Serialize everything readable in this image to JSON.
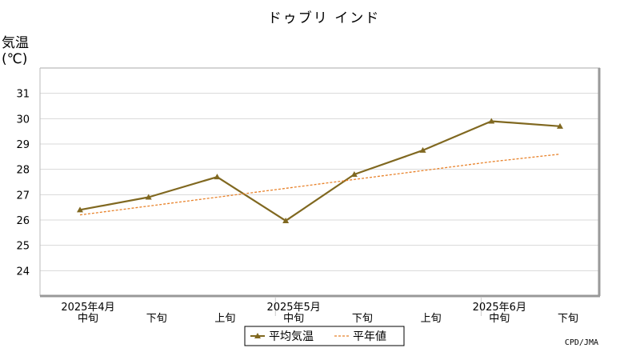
{
  "chart_data": {
    "type": "line",
    "title": "ドゥブリ インド",
    "ylabel": "気温",
    "yunit": "(℃)",
    "ylim": [
      23,
      32
    ],
    "yticks": [
      24,
      25,
      26,
      27,
      28,
      29,
      30,
      31
    ],
    "grid": true,
    "categories": [
      "2025年4月 中旬",
      "2025年4月 下旬",
      "2025年5月 上旬",
      "2025年5月 中旬",
      "2025年5月 下旬",
      "2025年6月 上旬",
      "2025年6月 中旬",
      "2025年6月 下旬"
    ],
    "month_labels": [
      {
        "label": "2025年4月",
        "at": 0
      },
      {
        "label": "2025年5月",
        "at": 3
      },
      {
        "label": "2025年6月",
        "at": 6
      }
    ],
    "period_labels": [
      "中旬",
      "下旬",
      "上旬",
      "中旬",
      "下旬",
      "上旬",
      "中旬",
      "下旬"
    ],
    "series": [
      {
        "name": "平均気温",
        "style": "solid",
        "marker": "triangle",
        "color": "#806820",
        "values": [
          26.4,
          26.9,
          27.7,
          25.97,
          27.8,
          28.75,
          29.9,
          29.7
        ]
      },
      {
        "name": "平年値",
        "style": "dotted",
        "marker": "none",
        "color": "#e8822a",
        "values": [
          26.2,
          26.55,
          26.9,
          27.25,
          27.6,
          27.95,
          28.3,
          28.6
        ]
      }
    ],
    "legend_position": "bottom-center",
    "credit": "CPD/JMA"
  }
}
